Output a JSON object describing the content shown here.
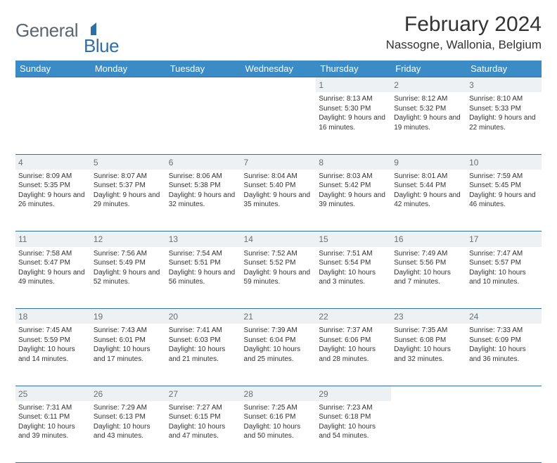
{
  "brand": {
    "text1": "General",
    "text2": "Blue",
    "color1": "#5c6670",
    "color2": "#2f6fa7"
  },
  "header": {
    "title": "February 2024",
    "location": "Nassogne, Wallonia, Belgium"
  },
  "colors": {
    "header_bg": "#3b8bc6",
    "header_fg": "#ffffff",
    "daynum_bg": "#eef1f3",
    "daynum_fg": "#6a6f74",
    "rule": "#2f6fa7"
  },
  "weekdays": [
    "Sunday",
    "Monday",
    "Tuesday",
    "Wednesday",
    "Thursday",
    "Friday",
    "Saturday"
  ],
  "weeks": [
    [
      null,
      null,
      null,
      null,
      {
        "n": "1",
        "sr": "8:13 AM",
        "ss": "5:30 PM",
        "dl": "9 hours and 16 minutes."
      },
      {
        "n": "2",
        "sr": "8:12 AM",
        "ss": "5:32 PM",
        "dl": "9 hours and 19 minutes."
      },
      {
        "n": "3",
        "sr": "8:10 AM",
        "ss": "5:33 PM",
        "dl": "9 hours and 22 minutes."
      }
    ],
    [
      {
        "n": "4",
        "sr": "8:09 AM",
        "ss": "5:35 PM",
        "dl": "9 hours and 26 minutes."
      },
      {
        "n": "5",
        "sr": "8:07 AM",
        "ss": "5:37 PM",
        "dl": "9 hours and 29 minutes."
      },
      {
        "n": "6",
        "sr": "8:06 AM",
        "ss": "5:38 PM",
        "dl": "9 hours and 32 minutes."
      },
      {
        "n": "7",
        "sr": "8:04 AM",
        "ss": "5:40 PM",
        "dl": "9 hours and 35 minutes."
      },
      {
        "n": "8",
        "sr": "8:03 AM",
        "ss": "5:42 PM",
        "dl": "9 hours and 39 minutes."
      },
      {
        "n": "9",
        "sr": "8:01 AM",
        "ss": "5:44 PM",
        "dl": "9 hours and 42 minutes."
      },
      {
        "n": "10",
        "sr": "7:59 AM",
        "ss": "5:45 PM",
        "dl": "9 hours and 46 minutes."
      }
    ],
    [
      {
        "n": "11",
        "sr": "7:58 AM",
        "ss": "5:47 PM",
        "dl": "9 hours and 49 minutes."
      },
      {
        "n": "12",
        "sr": "7:56 AM",
        "ss": "5:49 PM",
        "dl": "9 hours and 52 minutes."
      },
      {
        "n": "13",
        "sr": "7:54 AM",
        "ss": "5:51 PM",
        "dl": "9 hours and 56 minutes."
      },
      {
        "n": "14",
        "sr": "7:52 AM",
        "ss": "5:52 PM",
        "dl": "9 hours and 59 minutes."
      },
      {
        "n": "15",
        "sr": "7:51 AM",
        "ss": "5:54 PM",
        "dl": "10 hours and 3 minutes."
      },
      {
        "n": "16",
        "sr": "7:49 AM",
        "ss": "5:56 PM",
        "dl": "10 hours and 7 minutes."
      },
      {
        "n": "17",
        "sr": "7:47 AM",
        "ss": "5:57 PM",
        "dl": "10 hours and 10 minutes."
      }
    ],
    [
      {
        "n": "18",
        "sr": "7:45 AM",
        "ss": "5:59 PM",
        "dl": "10 hours and 14 minutes."
      },
      {
        "n": "19",
        "sr": "7:43 AM",
        "ss": "6:01 PM",
        "dl": "10 hours and 17 minutes."
      },
      {
        "n": "20",
        "sr": "7:41 AM",
        "ss": "6:03 PM",
        "dl": "10 hours and 21 minutes."
      },
      {
        "n": "21",
        "sr": "7:39 AM",
        "ss": "6:04 PM",
        "dl": "10 hours and 25 minutes."
      },
      {
        "n": "22",
        "sr": "7:37 AM",
        "ss": "6:06 PM",
        "dl": "10 hours and 28 minutes."
      },
      {
        "n": "23",
        "sr": "7:35 AM",
        "ss": "6:08 PM",
        "dl": "10 hours and 32 minutes."
      },
      {
        "n": "24",
        "sr": "7:33 AM",
        "ss": "6:09 PM",
        "dl": "10 hours and 36 minutes."
      }
    ],
    [
      {
        "n": "25",
        "sr": "7:31 AM",
        "ss": "6:11 PM",
        "dl": "10 hours and 39 minutes."
      },
      {
        "n": "26",
        "sr": "7:29 AM",
        "ss": "6:13 PM",
        "dl": "10 hours and 43 minutes."
      },
      {
        "n": "27",
        "sr": "7:27 AM",
        "ss": "6:15 PM",
        "dl": "10 hours and 47 minutes."
      },
      {
        "n": "28",
        "sr": "7:25 AM",
        "ss": "6:16 PM",
        "dl": "10 hours and 50 minutes."
      },
      {
        "n": "29",
        "sr": "7:23 AM",
        "ss": "6:18 PM",
        "dl": "10 hours and 54 minutes."
      },
      null,
      null
    ]
  ],
  "labels": {
    "sunrise": "Sunrise: ",
    "sunset": "Sunset: ",
    "daylight": "Daylight: "
  }
}
